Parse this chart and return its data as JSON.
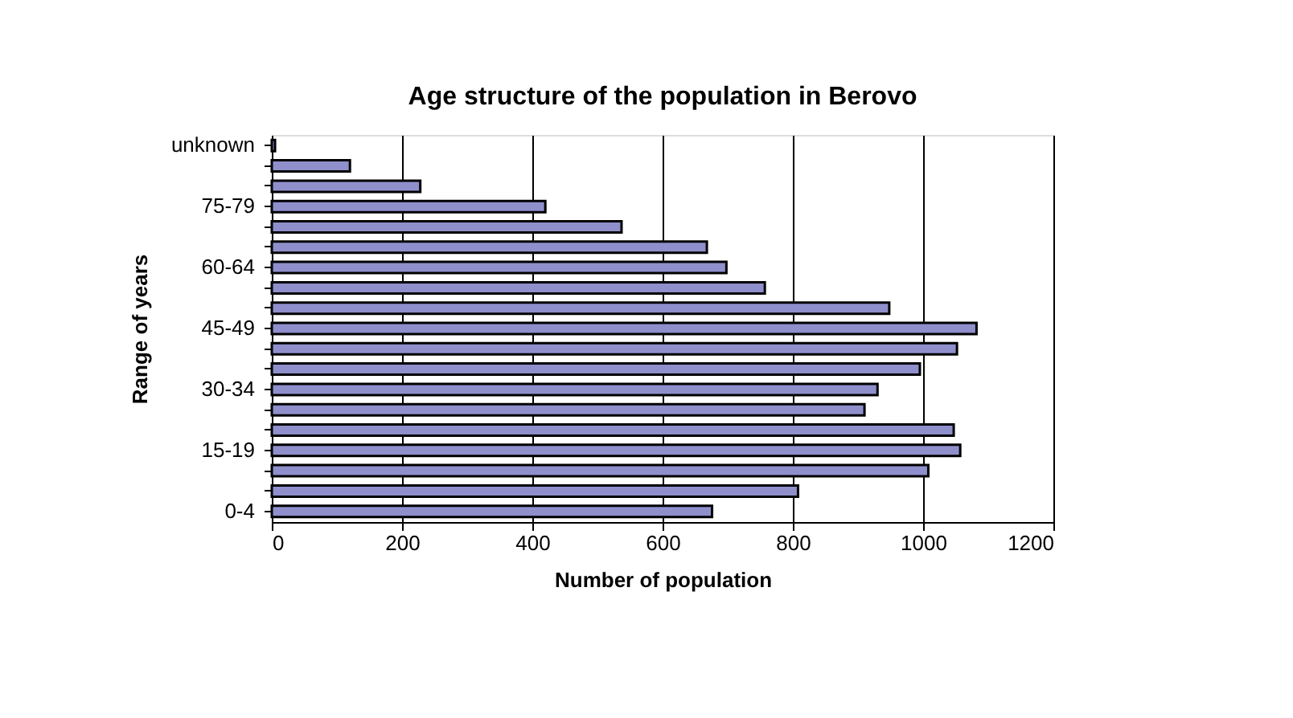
{
  "chart_data": {
    "type": "bar",
    "orientation": "horizontal",
    "title": "Age structure of the population in Berovo",
    "xlabel": "Number of population",
    "ylabel": "Range of years",
    "categories": [
      "unknown",
      null,
      null,
      "75-79",
      null,
      null,
      "60-64",
      null,
      null,
      "45-49",
      null,
      null,
      "30-34",
      null,
      null,
      "15-19",
      null,
      null,
      "0-4"
    ],
    "values": [
      5,
      120,
      228,
      420,
      537,
      668,
      698,
      757,
      948,
      1082,
      1052,
      995,
      930,
      910,
      1047,
      1057,
      1008,
      808,
      676
    ],
    "color": "#8f8fcc",
    "xlim": [
      0,
      1200
    ],
    "xticks": [
      0,
      200,
      400,
      600,
      800,
      1000,
      1200
    ],
    "grid": "x"
  }
}
